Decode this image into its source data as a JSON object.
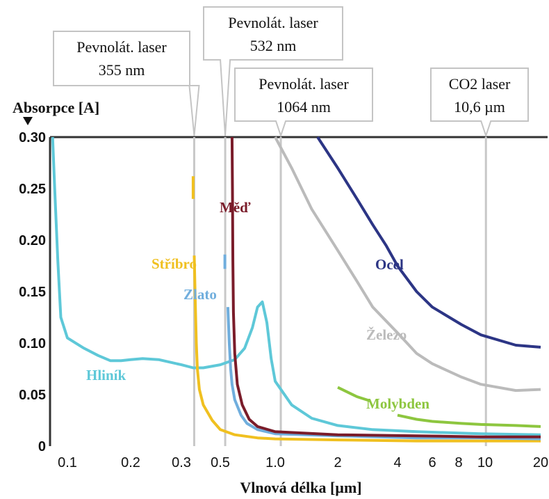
{
  "chart_data": {
    "type": "line",
    "title": "",
    "ylabel": "Absorpce [A]",
    "xlabel": "Vlnová délka [µm]",
    "x_scale": "log",
    "xlim": [
      0.08,
      20
    ],
    "ylim": [
      0,
      0.3
    ],
    "x_ticks": [
      {
        "value": 0.1,
        "label": "0.1"
      },
      {
        "value": 0.2,
        "label": "0.2"
      },
      {
        "value": 0.3,
        "label": "0.3"
      },
      {
        "value": 0.5,
        "label": "0.5"
      },
      {
        "value": 1.0,
        "label": "1.0"
      },
      {
        "value": 2,
        "label": "2"
      },
      {
        "value": 4,
        "label": "4"
      },
      {
        "value": 6,
        "label": "6"
      },
      {
        "value": 8,
        "label": "8"
      },
      {
        "value": 10,
        "label": "10"
      },
      {
        "value": 20,
        "label": "20"
      }
    ],
    "y_ticks": [
      {
        "value": 0,
        "label": "0"
      },
      {
        "value": 0.05,
        "label": "0.05"
      },
      {
        "value": 0.1,
        "label": "0.10"
      },
      {
        "value": 0.15,
        "label": "0.15"
      },
      {
        "value": 0.2,
        "label": "0.20"
      },
      {
        "value": 0.25,
        "label": "0.25"
      },
      {
        "value": 0.3,
        "label": "0.30"
      }
    ],
    "grid": false,
    "annotations": [
      {
        "line1": "Pevnolát. laser",
        "line2": "355 nm",
        "x": 0.355
      },
      {
        "line1": "Pevnolát. laser",
        "line2": "532 nm",
        "x": 0.532
      },
      {
        "line1": "Pevnolát. laser",
        "line2": "1064 nm",
        "x": 1.064
      },
      {
        "line1": "CO2 laser",
        "line2": "10,6 µm",
        "x": 10.6
      }
    ],
    "series": [
      {
        "name": "Hliník",
        "color": "#5ec8d8",
        "points": [
          [
            0.085,
            0.3
          ],
          [
            0.087,
            0.25
          ],
          [
            0.09,
            0.18
          ],
          [
            0.093,
            0.125
          ],
          [
            0.1,
            0.105
          ],
          [
            0.12,
            0.095
          ],
          [
            0.14,
            0.088
          ],
          [
            0.16,
            0.083
          ],
          [
            0.18,
            0.083
          ],
          [
            0.2,
            0.084
          ],
          [
            0.22,
            0.085
          ],
          [
            0.25,
            0.084
          ],
          [
            0.3,
            0.079
          ],
          [
            0.35,
            0.076
          ],
          [
            0.4,
            0.076
          ],
          [
            0.5,
            0.079
          ],
          [
            0.6,
            0.084
          ],
          [
            0.68,
            0.095
          ],
          [
            0.75,
            0.115
          ],
          [
            0.8,
            0.135
          ],
          [
            0.85,
            0.14
          ],
          [
            0.9,
            0.12
          ],
          [
            0.95,
            0.085
          ],
          [
            1.0,
            0.063
          ],
          [
            1.2,
            0.04
          ],
          [
            1.5,
            0.027
          ],
          [
            2,
            0.02
          ],
          [
            3,
            0.016
          ],
          [
            5,
            0.014
          ],
          [
            10,
            0.012
          ],
          [
            20,
            0.011
          ]
        ]
      },
      {
        "name": "Stříbro",
        "color": "#f0c020",
        "segments": [
          [
            [
              0.35,
              0.262
            ],
            [
              0.35,
              0.24
            ]
          ],
          [
            [
              0.355,
              0.185
            ],
            [
              0.36,
              0.14
            ],
            [
              0.365,
              0.1
            ],
            [
              0.37,
              0.075
            ],
            [
              0.38,
              0.055
            ],
            [
              0.4,
              0.04
            ],
            [
              0.45,
              0.025
            ],
            [
              0.5,
              0.016
            ],
            [
              0.6,
              0.011
            ],
            [
              0.8,
              0.008
            ],
            [
              1.0,
              0.007
            ],
            [
              2,
              0.006
            ],
            [
              5,
              0.005
            ],
            [
              10,
              0.005
            ],
            [
              20,
              0.005
            ]
          ]
        ]
      },
      {
        "name": "Zlato",
        "color": "#70aedd",
        "segments": [
          [
            [
              0.53,
              0.186
            ],
            [
              0.53,
              0.172
            ]
          ],
          [
            [
              0.55,
              0.135
            ],
            [
              0.56,
              0.1
            ],
            [
              0.57,
              0.075
            ],
            [
              0.58,
              0.06
            ],
            [
              0.6,
              0.045
            ],
            [
              0.65,
              0.03
            ],
            [
              0.7,
              0.022
            ],
            [
              0.8,
              0.016
            ],
            [
              1.0,
              0.012
            ],
            [
              2,
              0.01
            ],
            [
              5,
              0.008
            ],
            [
              10,
              0.008
            ],
            [
              20,
              0.007
            ]
          ]
        ]
      },
      {
        "name": "Měď",
        "color": "#7a1c2a",
        "points": [
          [
            0.58,
            0.3
          ],
          [
            0.583,
            0.25
          ],
          [
            0.586,
            0.18
          ],
          [
            0.59,
            0.13
          ],
          [
            0.6,
            0.09
          ],
          [
            0.62,
            0.06
          ],
          [
            0.66,
            0.04
          ],
          [
            0.72,
            0.026
          ],
          [
            0.8,
            0.019
          ],
          [
            1.0,
            0.014
          ],
          [
            2,
            0.011
          ],
          [
            5,
            0.01
          ],
          [
            10,
            0.009
          ],
          [
            20,
            0.009
          ]
        ]
      },
      {
        "name": "Železo",
        "color": "#bbbbbb",
        "points": [
          [
            1.0,
            0.3
          ],
          [
            1.2,
            0.27
          ],
          [
            1.5,
            0.23
          ],
          [
            2,
            0.19
          ],
          [
            2.5,
            0.16
          ],
          [
            3,
            0.135
          ],
          [
            4,
            0.11
          ],
          [
            5,
            0.09
          ],
          [
            6,
            0.08
          ],
          [
            8,
            0.067
          ],
          [
            10,
            0.06
          ],
          [
            15,
            0.054
          ],
          [
            20,
            0.055
          ]
        ]
      },
      {
        "name": "Ocel",
        "color": "#2c3585",
        "points": [
          [
            1.6,
            0.3
          ],
          [
            2,
            0.27
          ],
          [
            2.5,
            0.24
          ],
          [
            3,
            0.215
          ],
          [
            3.5,
            0.195
          ],
          [
            4,
            0.175
          ],
          [
            5,
            0.15
          ],
          [
            6,
            0.135
          ],
          [
            8,
            0.118
          ],
          [
            10,
            0.108
          ],
          [
            15,
            0.098
          ],
          [
            20,
            0.096
          ]
        ]
      },
      {
        "name": "Molybden",
        "color": "#8dc63f",
        "segments": [
          [
            [
              2,
              0.057
            ],
            [
              2.5,
              0.048
            ],
            [
              2.9,
              0.044
            ]
          ],
          [
            [
              4,
              0.03
            ],
            [
              5,
              0.026
            ],
            [
              6,
              0.024
            ],
            [
              8,
              0.022
            ],
            [
              10,
              0.021
            ],
            [
              15,
              0.02
            ],
            [
              20,
              0.019
            ]
          ]
        ]
      }
    ]
  }
}
